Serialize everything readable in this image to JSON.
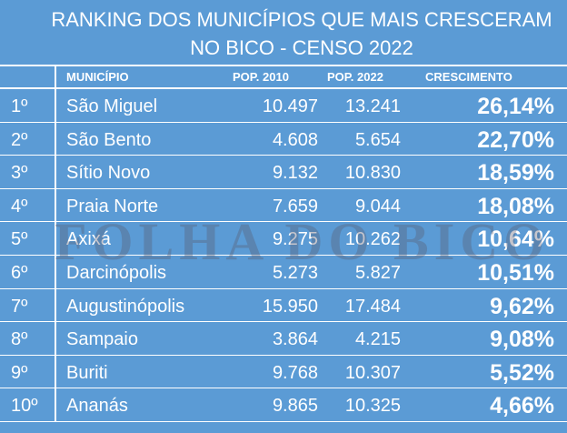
{
  "title": {
    "line1": "RANKING DOS MUNICÍPIOS QUE MAIS CRESCERAM",
    "line2": "NO BICO - CENSO 2022"
  },
  "headers": {
    "municipio": "MUNICÍPIO",
    "pop2010": "POP. 2010",
    "pop2022": "POP. 2022",
    "crescimento": "CRESCIMENTO"
  },
  "rows": [
    {
      "rank": "1º",
      "name": "São Miguel",
      "pop2010": "10.497",
      "pop2022": "13.241",
      "growth": "26,14%"
    },
    {
      "rank": "2º",
      "name": "São Bento",
      "pop2010": "4.608",
      "pop2022": "5.654",
      "growth": "22,70%"
    },
    {
      "rank": "3º",
      "name": "Sítio Novo",
      "pop2010": "9.132",
      "pop2022": "10.830",
      "growth": "18,59%"
    },
    {
      "rank": "4º",
      "name": "Praia Norte",
      "pop2010": "7.659",
      "pop2022": "9.044",
      "growth": "18,08%"
    },
    {
      "rank": "5º",
      "name": "Axixá",
      "pop2010": "9.275",
      "pop2022": "10.262",
      "growth": "10,64%"
    },
    {
      "rank": "6º",
      "name": "Darcinópolis",
      "pop2010": "5.273",
      "pop2022": "5.827",
      "growth": "10,51%"
    },
    {
      "rank": "7º",
      "name": "Augustinópolis",
      "pop2010": "15.950",
      "pop2022": "17.484",
      "growth": "9,62%"
    },
    {
      "rank": "8º",
      "name": "Sampaio",
      "pop2010": "3.864",
      "pop2022": "4.215",
      "growth": "9,08%"
    },
    {
      "rank": "9º",
      "name": "Buriti",
      "pop2010": "9.768",
      "pop2022": "10.307",
      "growth": "5,52%"
    },
    {
      "rank": "10º",
      "name": "Ananás",
      "pop2010": "9.865",
      "pop2022": "10.325",
      "growth": "4,66%"
    }
  ],
  "watermark": "FOLHA DO BICO",
  "colors": {
    "background": "#5b9bd5",
    "text": "#ffffff",
    "watermark": "#5a5a6e"
  }
}
